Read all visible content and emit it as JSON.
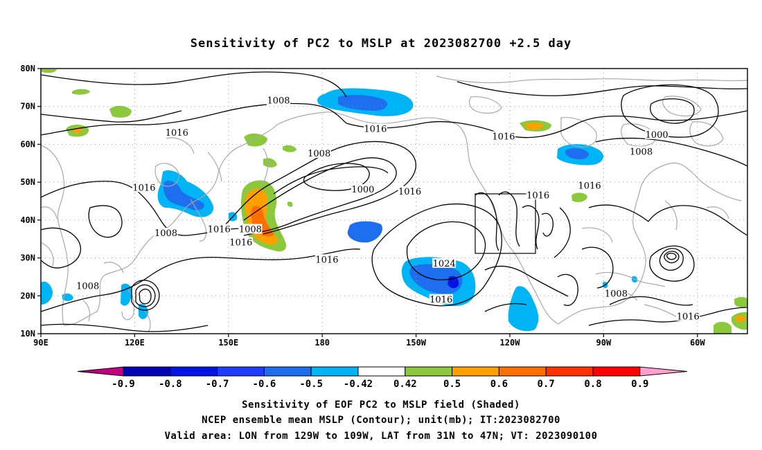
{
  "title": "Sensitivity of PC2 to MSLP at 2023082700 +2.5 day",
  "map": {
    "lon_ticks": [
      "90E",
      "120E",
      "150E",
      "180",
      "150W",
      "120W",
      "90W",
      "60W"
    ],
    "lat_ticks": [
      "80N",
      "70N",
      "60N",
      "50N",
      "40N",
      "30N",
      "20N",
      "10N"
    ],
    "contour_labels": [
      {
        "text": "1008",
        "lon": 166,
        "lat": 71.5
      },
      {
        "text": "1016",
        "lon": 133.5,
        "lat": 63
      },
      {
        "text": "1016",
        "lon": 197,
        "lat": 64
      },
      {
        "text": "1016",
        "lon": 238,
        "lat": 62
      },
      {
        "text": "1000",
        "lon": 287,
        "lat": 62.5
      },
      {
        "text": "1008",
        "lon": 282,
        "lat": 58
      },
      {
        "text": "1008",
        "lon": 179,
        "lat": 57.5
      },
      {
        "text": "1016",
        "lon": 123,
        "lat": 48.5
      },
      {
        "text": "1000",
        "lon": 193,
        "lat": 48
      },
      {
        "text": "1016",
        "lon": 208,
        "lat": 47.5
      },
      {
        "text": "1016",
        "lon": 249,
        "lat": 46.5
      },
      {
        "text": "1016",
        "lon": 265.5,
        "lat": 49
      },
      {
        "text": "1008",
        "lon": 130,
        "lat": 36.5
      },
      {
        "text": "1016",
        "lon": 147,
        "lat": 37.5
      },
      {
        "text": "1008",
        "lon": 157,
        "lat": 37.5
      },
      {
        "text": "1016",
        "lon": 154,
        "lat": 34
      },
      {
        "text": "1016",
        "lon": 181.5,
        "lat": 29.5
      },
      {
        "text": "1024",
        "lon": 219,
        "lat": 28.5
      },
      {
        "text": "1008",
        "lon": 105,
        "lat": 22.5
      },
      {
        "text": "1008",
        "lon": 274,
        "lat": 20.5
      },
      {
        "text": "1016",
        "lon": 218,
        "lat": 19
      },
      {
        "text": "1016",
        "lon": 297,
        "lat": 14.5
      }
    ]
  },
  "colorbar": {
    "ticks": [
      "-0.9",
      "-0.8",
      "-0.7",
      "-0.6",
      "-0.5",
      "-0.42",
      "0.42",
      "0.5",
      "0.6",
      "0.7",
      "0.8",
      "0.9"
    ],
    "colors": {
      "left_arrow": "#c00080",
      "boxes": [
        "#0000b4",
        "#0014e6",
        "#1e3cff",
        "#1e6ef0",
        "#00b4f5",
        "#ffffff",
        "#8cc83c",
        "#ffa000",
        "#ff6e00",
        "#ff3200",
        "#ff0000"
      ],
      "right_arrow": "#ffa0d0"
    }
  },
  "captions": [
    "Sensitivity of EOF PC2 to MSLP field (Shaded)",
    "NCEP ensemble mean MSLP (Contour); unit(mb); IT:2023082700",
    "Valid area: LON from 129W to 109W, LAT from 31N to 47N; VT: 2023090100"
  ]
}
